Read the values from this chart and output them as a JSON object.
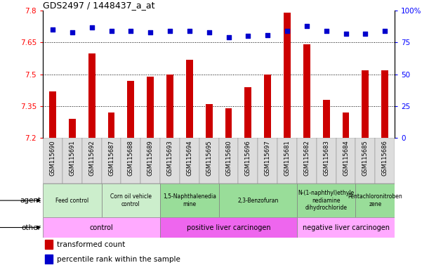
{
  "title": "GDS2497 / 1448437_a_at",
  "samples": [
    "GSM115690",
    "GSM115691",
    "GSM115692",
    "GSM115687",
    "GSM115688",
    "GSM115689",
    "GSM115693",
    "GSM115694",
    "GSM115695",
    "GSM115680",
    "GSM115696",
    "GSM115697",
    "GSM115681",
    "GSM115682",
    "GSM115683",
    "GSM115684",
    "GSM115685",
    "GSM115686"
  ],
  "bar_values_all": [
    7.42,
    7.29,
    7.6,
    7.32,
    7.47,
    7.49,
    7.5,
    7.57,
    7.36,
    7.34,
    7.44,
    7.5,
    7.79,
    7.64,
    7.38,
    7.32,
    7.52,
    7.52
  ],
  "percentile_values": [
    85,
    83,
    87,
    84,
    84,
    83,
    84,
    84,
    83,
    79,
    80,
    81,
    84,
    88,
    84,
    82,
    82,
    84
  ],
  "ylim_left": [
    7.2,
    7.8
  ],
  "ylim_right": [
    0,
    100
  ],
  "yticks_left": [
    7.2,
    7.35,
    7.5,
    7.65,
    7.8
  ],
  "yticks_right": [
    0,
    25,
    50,
    75,
    100
  ],
  "bar_color": "#cc0000",
  "dot_color": "#0000cc",
  "agent_groups": [
    {
      "label": "Feed control",
      "start": 0,
      "end": 3,
      "color": "#cceecc"
    },
    {
      "label": "Corn oil vehicle\ncontrol",
      "start": 3,
      "end": 6,
      "color": "#cceecc"
    },
    {
      "label": "1,5-Naphthalenedia\nmine",
      "start": 6,
      "end": 9,
      "color": "#99dd99"
    },
    {
      "label": "2,3-Benzofuran",
      "start": 9,
      "end": 13,
      "color": "#99dd99"
    },
    {
      "label": "N-(1-naphthyl)ethyle\nnediamine\ndihydrochloride",
      "start": 13,
      "end": 16,
      "color": "#99dd99"
    },
    {
      "label": "Pentachloronitroben\nzene",
      "start": 16,
      "end": 18,
      "color": "#99dd99"
    }
  ],
  "other_groups": [
    {
      "label": "control",
      "start": 0,
      "end": 6,
      "color": "#ffaaff"
    },
    {
      "label": "positive liver carcinogen",
      "start": 6,
      "end": 13,
      "color": "#ee66ee"
    },
    {
      "label": "negative liver carcinogen",
      "start": 13,
      "end": 18,
      "color": "#ffaaff"
    }
  ],
  "legend_items": [
    {
      "color": "#cc0000",
      "label": "transformed count"
    },
    {
      "color": "#0000cc",
      "label": "percentile rank within the sample"
    }
  ]
}
